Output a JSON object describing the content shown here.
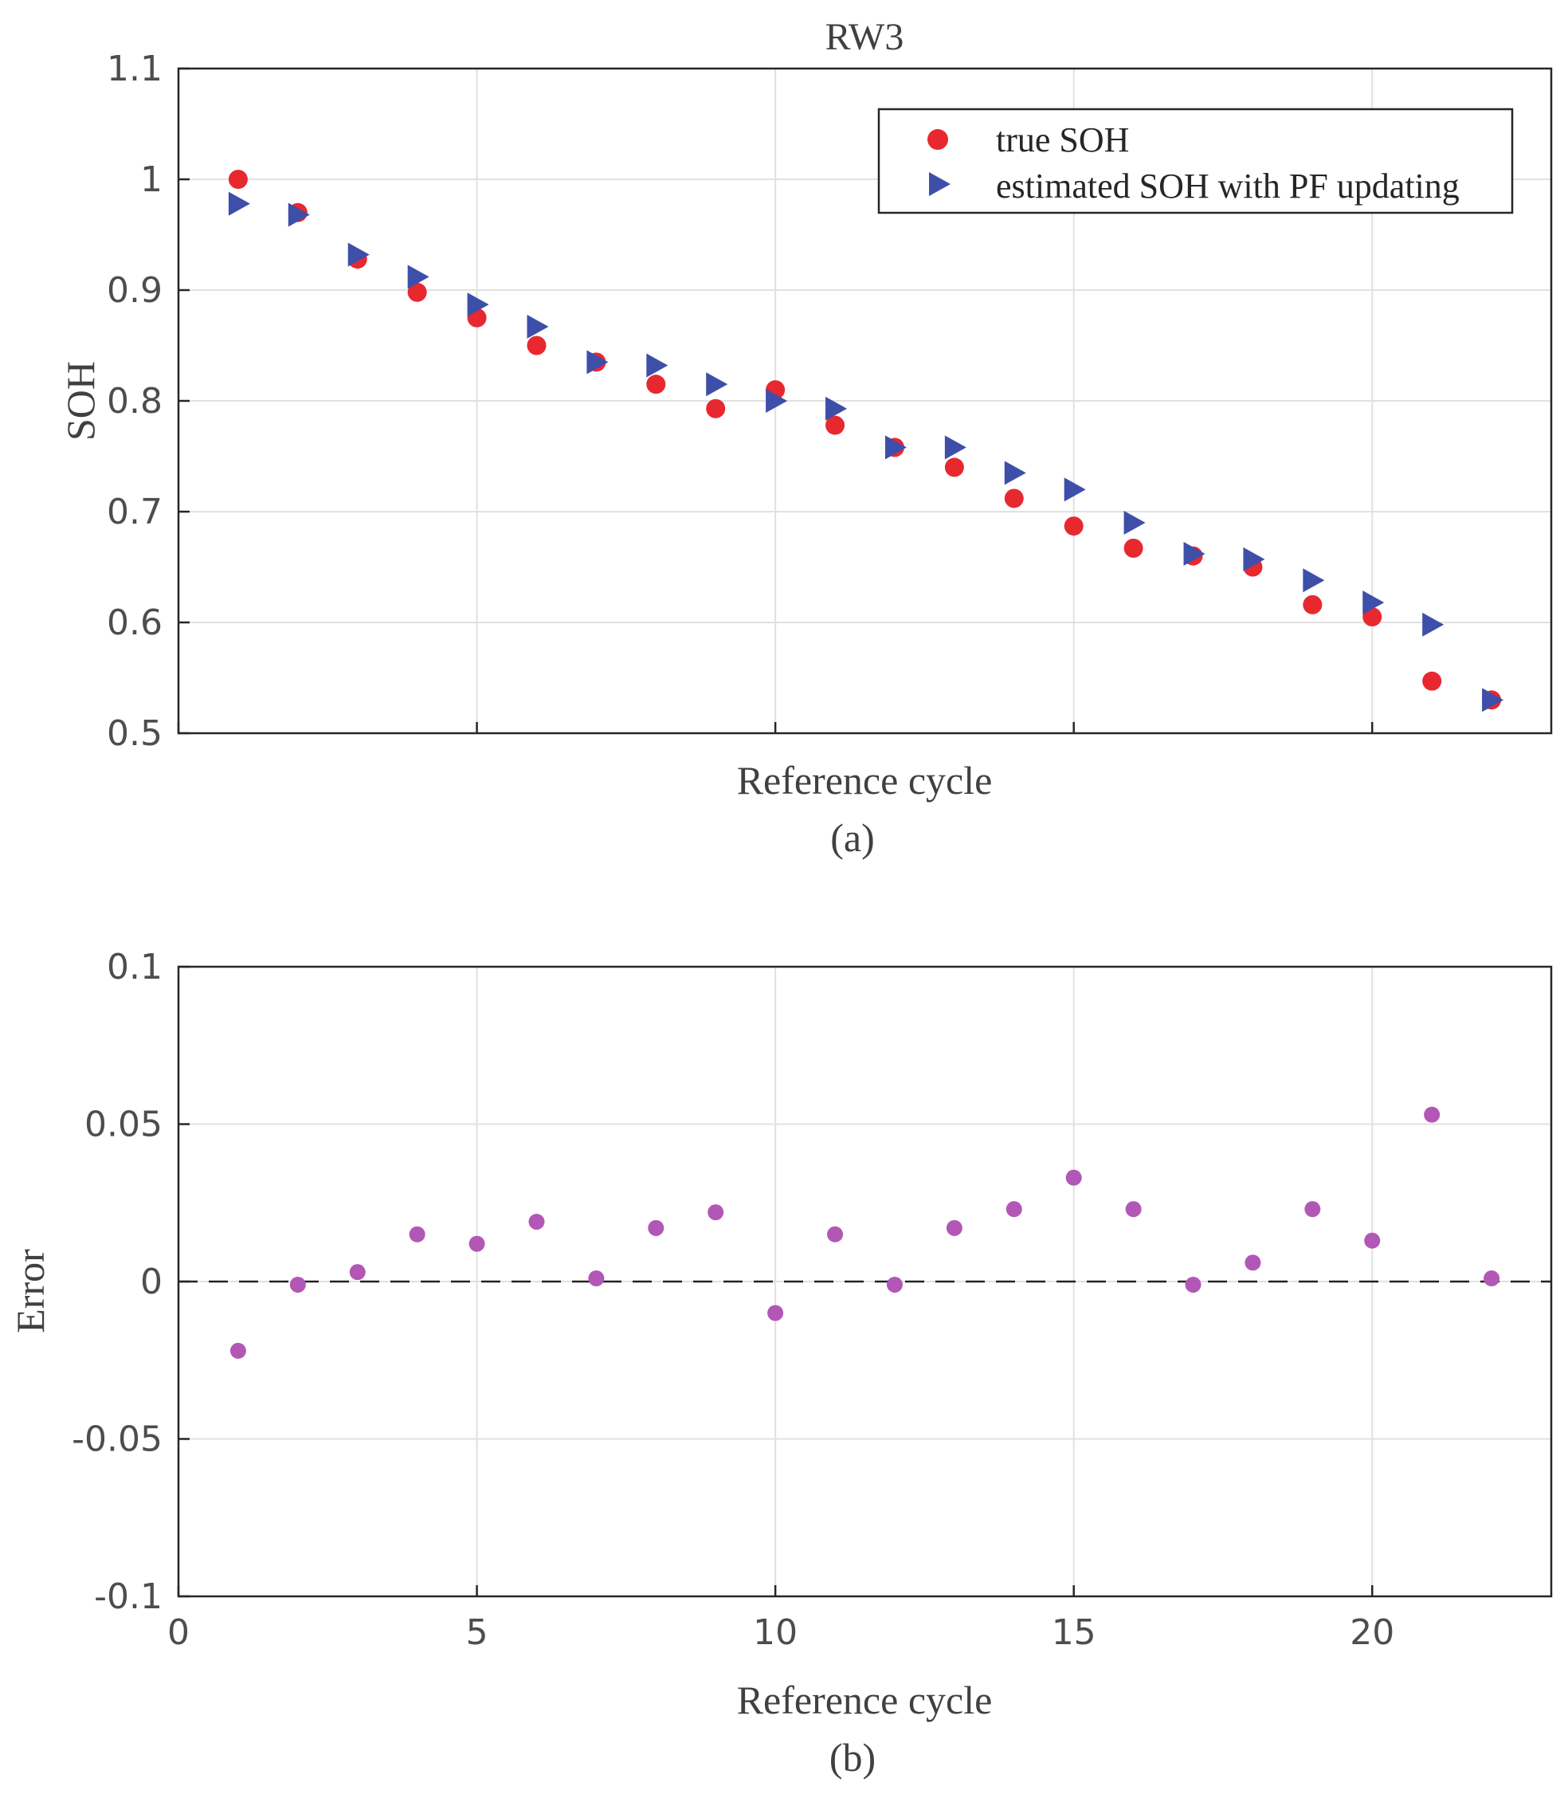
{
  "chart_data": [
    {
      "type": "scatter",
      "panel": "(a)",
      "title": "RW3",
      "xlabel": "Reference cycle",
      "ylabel": "SOH",
      "xlim": [
        0,
        23
      ],
      "ylim": [
        0.5,
        1.1
      ],
      "xticks": [
        0,
        5,
        10,
        15,
        20
      ],
      "yticks": [
        0.5,
        0.6,
        0.7,
        0.8,
        0.9,
        1.0,
        1.1
      ],
      "ytick_labels": [
        "0.5",
        "0.6",
        "0.7",
        "0.8",
        "0.9",
        "1",
        "1.1"
      ],
      "grid": true,
      "legend_position": "top-right",
      "series": [
        {
          "name": "true SOH",
          "marker": "circle",
          "color": "#e8282f",
          "x": [
            1,
            2,
            3,
            4,
            5,
            6,
            7,
            8,
            9,
            10,
            11,
            12,
            13,
            14,
            15,
            16,
            17,
            18,
            19,
            20,
            21,
            22
          ],
          "values": [
            1.0,
            0.97,
            0.928,
            0.898,
            0.875,
            0.85,
            0.835,
            0.815,
            0.793,
            0.81,
            0.778,
            0.758,
            0.74,
            0.712,
            0.687,
            0.667,
            0.66,
            0.65,
            0.616,
            0.605,
            0.547,
            0.53
          ]
        },
        {
          "name": "estimated SOH with PF updating",
          "marker": "triangle-right",
          "color": "#3d4fa8",
          "x": [
            1,
            2,
            3,
            4,
            5,
            6,
            7,
            8,
            9,
            10,
            11,
            12,
            13,
            14,
            15,
            16,
            17,
            18,
            19,
            20,
            21,
            22
          ],
          "values": [
            0.978,
            0.968,
            0.932,
            0.912,
            0.887,
            0.867,
            0.835,
            0.832,
            0.815,
            0.8,
            0.793,
            0.758,
            0.758,
            0.735,
            0.72,
            0.69,
            0.662,
            0.657,
            0.638,
            0.618,
            0.598,
            0.53
          ]
        }
      ]
    },
    {
      "type": "scatter",
      "panel": "(b)",
      "title": "",
      "xlabel": "Reference cycle",
      "ylabel": "Error",
      "xlim": [
        0,
        23
      ],
      "ylim": [
        -0.1,
        0.1
      ],
      "xticks": [
        0,
        5,
        10,
        15,
        20
      ],
      "xtick_labels": [
        "0",
        "5",
        "10",
        "15",
        "20"
      ],
      "yticks": [
        -0.1,
        -0.05,
        0,
        0.05,
        0.1
      ],
      "ytick_labels": [
        "-0.1",
        "-0.05",
        "0",
        "0.05",
        "0.1"
      ],
      "grid": true,
      "reference_line": {
        "y": 0,
        "style": "dashed",
        "color": "#222222"
      },
      "series": [
        {
          "name": "Error",
          "marker": "circle",
          "color": "#b257b5",
          "x": [
            1,
            2,
            3,
            4,
            5,
            6,
            7,
            8,
            9,
            10,
            11,
            12,
            13,
            14,
            15,
            16,
            17,
            18,
            19,
            20,
            21,
            22
          ],
          "values": [
            -0.022,
            -0.001,
            0.003,
            0.015,
            0.012,
            0.019,
            0.001,
            0.017,
            0.022,
            -0.01,
            0.015,
            -0.001,
            0.017,
            0.023,
            0.033,
            0.023,
            -0.001,
            0.006,
            0.023,
            0.013,
            0.053,
            0.001
          ]
        }
      ]
    }
  ]
}
